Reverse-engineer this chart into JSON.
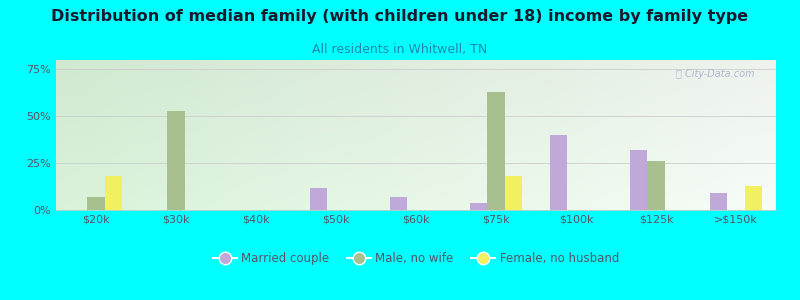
{
  "title": "Distribution of median family (with children under 18) income by family type",
  "subtitle": "All residents in Whitwell, TN",
  "categories": [
    "$20k",
    "$30k",
    "$40k",
    "$50k",
    "$60k",
    "$75k",
    "$100k",
    "$125k",
    ">$150k"
  ],
  "married_couple": [
    0,
    0,
    0,
    12,
    7,
    4,
    40,
    32,
    9
  ],
  "male_no_wife": [
    7,
    53,
    0,
    0,
    0,
    63,
    0,
    26,
    0
  ],
  "female_no_husband": [
    18,
    0,
    0,
    0,
    0,
    18,
    0,
    0,
    13
  ],
  "married_color": "#c0a8d8",
  "male_color": "#a8c090",
  "female_color": "#f0f060",
  "bg_color": "#00ffff",
  "title_color": "#1a1a2e",
  "subtitle_color": "#2288aa",
  "axis_color": "#555566",
  "ylim": [
    0,
    80
  ],
  "yticks": [
    0,
    25,
    50,
    75
  ],
  "bar_width": 0.22,
  "title_fontsize": 11.5,
  "subtitle_fontsize": 9,
  "legend_fontsize": 8.5,
  "tick_fontsize": 8
}
